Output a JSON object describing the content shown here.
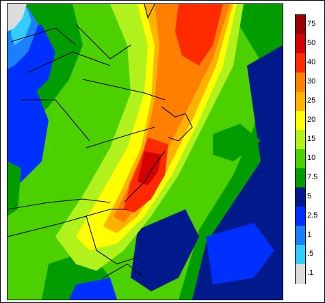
{
  "legend": {
    "labels": [
      "75",
      "50",
      "40",
      "30",
      "25",
      "20",
      "15",
      "10",
      "7.5",
      "5",
      "2.5",
      "1",
      ".5",
      ".1"
    ],
    "colors": [
      "#9a0000",
      "#d20000",
      "#ff2a00",
      "#ff7f00",
      "#ffb300",
      "#ffff00",
      "#b2f21c",
      "#4cd000",
      "#009c00",
      "#001a8c",
      "#0030ff",
      "#1a80ff",
      "#33ccff",
      "#dcdcdc"
    ]
  }
}
